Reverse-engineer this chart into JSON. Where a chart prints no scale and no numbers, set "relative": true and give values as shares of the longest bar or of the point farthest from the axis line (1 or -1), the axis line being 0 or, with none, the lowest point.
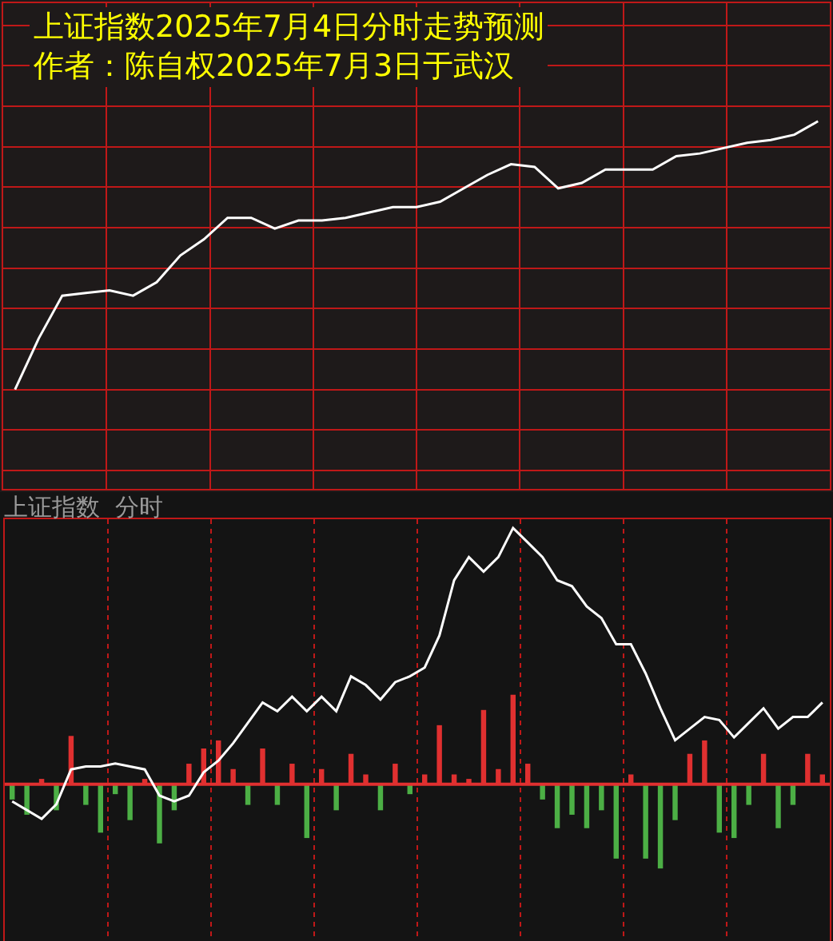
{
  "chart_data": [
    {
      "type": "line",
      "title": "上证指数2025年7月4日分时走势预测",
      "subtitle": "作者：陈自权2025年7月3日于武汉",
      "relative": true,
      "grid": true,
      "color": "#ffffff",
      "categories": [
        null,
        null,
        null,
        null,
        null,
        null,
        null,
        null,
        null,
        null,
        null,
        null,
        null,
        null,
        null,
        null,
        null,
        null,
        null,
        null,
        null,
        null,
        null,
        null,
        null,
        null,
        null,
        null,
        null,
        null,
        null,
        null,
        null,
        null,
        null
      ],
      "values": [
        0,
        0.19,
        0.35,
        0.36,
        0.37,
        0.35,
        0.4,
        0.5,
        0.56,
        0.64,
        0.64,
        0.6,
        0.63,
        0.63,
        0.64,
        0.66,
        0.68,
        0.68,
        0.7,
        0.75,
        0.8,
        0.84,
        0.83,
        0.75,
        0.77,
        0.82,
        0.82,
        0.82,
        0.87,
        0.88,
        0.9,
        0.92,
        0.93,
        0.95,
        1.0
      ]
    },
    {
      "type": "line",
      "title": "上证指数  分时",
      "relative": true,
      "grid": "x",
      "color": "#ffffff",
      "categories": [
        null,
        null,
        null,
        null,
        null,
        null,
        null,
        null,
        null,
        null,
        null,
        null,
        null,
        null,
        null,
        null,
        null,
        null,
        null,
        null,
        null,
        null,
        null,
        null,
        null,
        null,
        null,
        null,
        null,
        null,
        null,
        null,
        null,
        null,
        null,
        null,
        null,
        null,
        null,
        null,
        null,
        null,
        null,
        null,
        null,
        null,
        null,
        null,
        null,
        null,
        null,
        null,
        null,
        null,
        null,
        null
      ],
      "values": [
        0.06,
        0.03,
        0,
        0.05,
        0.17,
        0.18,
        0.18,
        0.19,
        0.18,
        0.17,
        0.08,
        0.06,
        0.08,
        0.16,
        0.2,
        0.26,
        0.33,
        0.4,
        0.37,
        0.42,
        0.37,
        0.42,
        0.37,
        0.49,
        0.46,
        0.41,
        0.47,
        0.49,
        0.52,
        0.63,
        0.82,
        0.9,
        0.85,
        0.9,
        1,
        0.95,
        0.9,
        0.82,
        0.8,
        0.73,
        0.69,
        0.6,
        0.6,
        0.5,
        0.38,
        0.27,
        0.31,
        0.35,
        0.34,
        0.28,
        0.33,
        0.38,
        0.31,
        0.35,
        0.35,
        0.4
      ]
    },
    {
      "type": "bar",
      "relative": true,
      "ref_lines": [
        {
          "axis": "y",
          "value": 0,
          "color": "#e03030"
        }
      ],
      "categories": [
        null,
        null,
        null,
        null,
        null,
        null,
        null,
        null,
        null,
        null,
        null,
        null,
        null,
        null,
        null,
        null,
        null,
        null,
        null,
        null,
        null,
        null,
        null,
        null,
        null,
        null,
        null,
        null,
        null,
        null,
        null,
        null,
        null,
        null,
        null,
        null,
        null,
        null,
        null,
        null,
        null,
        null,
        null,
        null,
        null,
        null,
        null,
        null,
        null,
        null,
        null,
        null,
        null,
        null,
        null,
        null
      ],
      "colors": [
        "#4caf45",
        "#4caf45",
        "#e03030",
        "#4caf45",
        "#e03030",
        "#4caf45",
        "#4caf45",
        "#4caf45",
        "#4caf45",
        "#e03030",
        "#4caf45",
        "#4caf45",
        "#e03030",
        "#e03030",
        "#e03030",
        "#e03030",
        "#4caf45",
        "#e03030",
        "#4caf45",
        "#e03030",
        "#4caf45",
        "#e03030",
        "#4caf45",
        "#e03030",
        "#e03030",
        "#4caf45",
        "#e03030",
        "#4caf45",
        "#e03030",
        "#e03030",
        "#e03030",
        "#e03030",
        "#e03030",
        "#e03030",
        "#e03030",
        "#e03030",
        "#4caf45",
        "#4caf45",
        "#4caf45",
        "#4caf45",
        "#4caf45",
        "#4caf45",
        "#e03030",
        "#4caf45",
        "#4caf45",
        "#4caf45",
        "#e03030",
        "#e03030",
        "#4caf45",
        "#4caf45",
        "#4caf45",
        "#e03030",
        "#4caf45",
        "#4caf45",
        "#e03030",
        "#e03030"
      ],
      "values": [
        -0.17,
        -0.34,
        0.06,
        -0.29,
        0.54,
        -0.23,
        -0.54,
        -0.11,
        -0.4,
        0.06,
        -0.66,
        -0.29,
        0.23,
        0.4,
        0.49,
        0.17,
        -0.23,
        0.4,
        -0.23,
        0.23,
        -0.6,
        0.17,
        -0.29,
        0.34,
        0.11,
        -0.29,
        0.23,
        -0.11,
        0.11,
        0.66,
        0.11,
        0.06,
        0.83,
        0.17,
        1,
        0.23,
        -0.17,
        -0.49,
        -0.34,
        -0.49,
        -0.29,
        -0.83,
        0.11,
        -0.83,
        -0.94,
        -0.4,
        0.34,
        0.49,
        -0.54,
        -0.6,
        -0.23,
        0.34,
        -0.49,
        -0.23,
        0.34,
        0.11
      ]
    }
  ]
}
